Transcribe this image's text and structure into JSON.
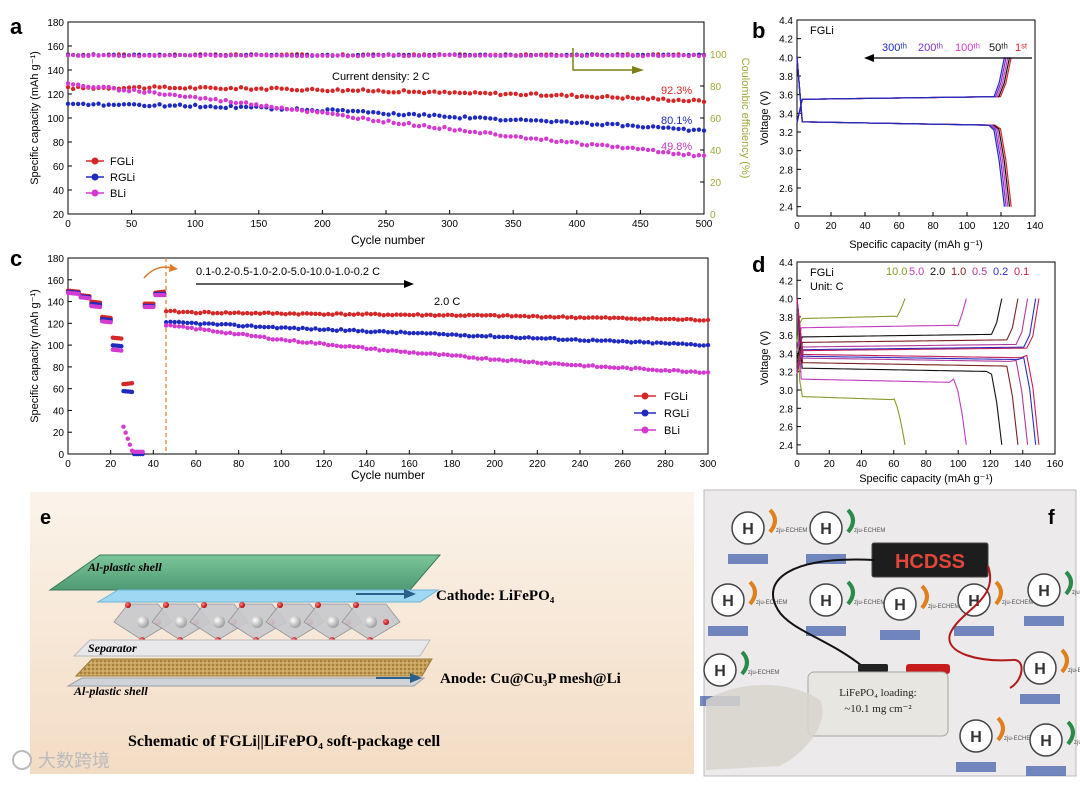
{
  "colors": {
    "fgli": "#d62728",
    "rgli": "#1f2bbf",
    "bli": "#d33bd0",
    "ce": "#6b8e23",
    "ce_axis": "#a0a83c",
    "olive": "#7f7f1a",
    "black": "#111111",
    "orange": "#e07a2c",
    "gray": "#555555"
  },
  "panel_a": {
    "label": "a",
    "xlabel": "Cycle number",
    "ylabel": "Specific capacity (mAh g⁻¹)",
    "y2label": "Coulombic efficiency (%)",
    "annotation": "Current density: 2 C",
    "pct_labels": [
      {
        "text": "92.3%",
        "series": "FGLi"
      },
      {
        "text": "80.1%",
        "series": "RGLi"
      },
      {
        "text": "49.8%",
        "series": "BLi"
      }
    ]
  },
  "panel_b": {
    "label": "b",
    "title": "FGLi",
    "xlabel": "Specific capacity (mAh g⁻¹)",
    "ylabel": "Voltage (V)",
    "cycle_labels": [
      "300ᵗʰ",
      "200ᵗʰ",
      "100ᵗʰ",
      "50ᵗʰ",
      "1ˢᵗ"
    ]
  },
  "panel_c": {
    "label": "c",
    "xlabel": "Cycle number",
    "ylabel": "Specific capacity (mAh g⁻¹)",
    "rate_sequence": "0.1-0.2-0.5-1.0-2.0-5.0-10.0-1.0-0.2 C",
    "rate_label": "2.0 C"
  },
  "panel_d": {
    "label": "d",
    "title": "FGLi",
    "unit": "Unit: C",
    "xlabel": "Specific capacity (mAh g⁻¹)",
    "ylabel": "Voltage (V)",
    "rates": [
      "10.0",
      "5.0",
      "2.0",
      "1.0",
      "0.5",
      "0.2",
      "0.1"
    ]
  },
  "panel_e": {
    "label": "e",
    "top_shell": "Al-plastic shell",
    "separator": "Separator",
    "bottom_shell": "Al-plastic shell",
    "cathode": "Cathode: LiFePO₄",
    "anode": "Anode: Cu@Cu₃P mesh@Li",
    "caption": "Schematic of FGLi||LiFePO₄ soft-package cell"
  },
  "panel_f": {
    "label": "f",
    "cell_label_1": "LiFePO₄ loading:",
    "cell_label_2": "~10.1 mg cm⁻²",
    "led_text": "HCDSS",
    "logo_text": "zju-ECHEM"
  },
  "watermark": "大数跨境",
  "chart_data": [
    {
      "panel": "a",
      "type": "line",
      "xlim": [
        0,
        500
      ],
      "ylim": [
        20,
        180
      ],
      "y2lim": [
        0,
        120
      ],
      "xticks": [
        0,
        50,
        100,
        150,
        200,
        250,
        300,
        350,
        400,
        450,
        500
      ],
      "yticks": [
        20,
        40,
        60,
        80,
        100,
        120,
        140,
        160,
        180
      ],
      "y2ticks": [
        0,
        20,
        40,
        60,
        80,
        100
      ],
      "series": [
        {
          "name": "FGLi",
          "x": [
            0,
            50,
            100,
            150,
            200,
            250,
            300,
            350,
            400,
            450,
            500
          ],
          "y": [
            125,
            125.5,
            125,
            124.5,
            123.5,
            122.5,
            121,
            120,
            118.5,
            116.5,
            114
          ],
          "y2": [
            99.5,
            99.5,
            99.5,
            99.5,
            99.5,
            99.5,
            99.5,
            99.5,
            99.5,
            99.5,
            99.5
          ]
        },
        {
          "name": "RGLi",
          "x": [
            0,
            50,
            100,
            150,
            200,
            250,
            300,
            350,
            400,
            450,
            500
          ],
          "y": [
            111,
            111,
            110,
            108.5,
            106.5,
            104,
            101,
            98.5,
            96,
            93,
            89.5
          ],
          "y2": [
            99.3,
            99.3,
            99.3,
            99.3,
            99.3,
            99.3,
            99.3,
            99.3,
            99.3,
            99.3,
            99.3
          ]
        },
        {
          "name": "BLi",
          "x": [
            0,
            20,
            50,
            100,
            150,
            200,
            250,
            300,
            350,
            400,
            450,
            500
          ],
          "y": [
            128,
            126,
            123,
            117,
            111,
            104,
            97,
            91,
            85,
            79,
            74,
            68
          ],
          "y2": [
            99,
            99,
            99,
            99,
            99,
            99,
            99,
            99,
            99,
            99,
            99,
            99
          ]
        }
      ]
    },
    {
      "panel": "b",
      "type": "line",
      "xlim": [
        0,
        140
      ],
      "ylim": [
        2.3,
        4.4
      ],
      "xticks": [
        0,
        20,
        40,
        60,
        80,
        100,
        120,
        140
      ],
      "yticks": [
        2.4,
        2.6,
        2.8,
        3.0,
        3.2,
        3.4,
        3.6,
        3.8,
        4.0,
        4.2,
        4.4
      ],
      "series": [
        {
          "name": "1st",
          "color": "#d62728",
          "capacity": 126
        },
        {
          "name": "50th",
          "color": "#111111",
          "capacity": 125
        },
        {
          "name": "100th",
          "color": "#d33bd0",
          "capacity": 124
        },
        {
          "name": "200th",
          "color": "#7b2fbe",
          "capacity": 123
        },
        {
          "name": "300th",
          "color": "#1f2bbf",
          "capacity": 122
        }
      ]
    },
    {
      "panel": "c",
      "type": "line",
      "xlim": [
        0,
        300
      ],
      "ylim": [
        0,
        180
      ],
      "xticks": [
        0,
        20,
        40,
        60,
        80,
        100,
        120,
        140,
        160,
        180,
        200,
        220,
        240,
        260,
        280,
        300
      ],
      "yticks": [
        0,
        20,
        40,
        60,
        80,
        100,
        120,
        140,
        160,
        180
      ],
      "series": [
        {
          "name": "FGLi",
          "x": [
            0,
            5,
            5.1,
            10,
            10.1,
            15,
            15.1,
            20,
            20.1,
            25,
            25.1,
            30,
            30.1,
            35,
            35.1,
            40,
            40.1,
            45,
            46,
            60,
            100,
            150,
            200,
            250,
            300
          ],
          "y": [
            150,
            149,
            146,
            145,
            140,
            139,
            126,
            125,
            107,
            106,
            64,
            65,
            0,
            0,
            138,
            138,
            148,
            149,
            131,
            130,
            129,
            128,
            127,
            125,
            123
          ]
        },
        {
          "name": "RGLi",
          "x": [
            0,
            5,
            5.1,
            10,
            10.1,
            15,
            15.1,
            20,
            20.1,
            25,
            25.1,
            30,
            30.1,
            35,
            35.1,
            40,
            40.1,
            45,
            46,
            60,
            100,
            150,
            200,
            250,
            300
          ],
          "y": [
            149,
            148,
            145,
            144,
            138,
            137,
            124,
            123,
            100,
            99,
            58,
            57,
            0,
            0,
            136,
            136,
            147,
            147,
            121,
            120,
            116,
            112,
            108,
            104,
            100
          ]
        },
        {
          "name": "BLi",
          "x": [
            0,
            5,
            5.1,
            10,
            10.1,
            15,
            15.1,
            20,
            20.1,
            25,
            25.1,
            30,
            30.1,
            35,
            35.1,
            40,
            40.1,
            45,
            46,
            60,
            100,
            150,
            200,
            250,
            300
          ],
          "y": [
            148,
            147,
            144,
            143,
            136,
            135,
            122,
            121,
            96,
            95,
            30,
            3,
            2,
            2,
            135,
            135,
            146,
            146,
            118,
            115,
            105,
            95,
            87,
            80,
            75
          ]
        }
      ]
    },
    {
      "panel": "d",
      "type": "line",
      "xlim": [
        0,
        160
      ],
      "ylim": [
        2.3,
        4.4
      ],
      "xticks": [
        0,
        20,
        40,
        60,
        80,
        100,
        120,
        140,
        160
      ],
      "yticks": [
        2.4,
        2.6,
        2.8,
        3.0,
        3.2,
        3.4,
        3.6,
        3.8,
        4.0,
        4.2,
        4.4
      ],
      "series": [
        {
          "name": "10.0",
          "color": "#8a9a2a",
          "capacity": 67,
          "charge_plateau": 3.78,
          "discharge_plateau": 2.93
        },
        {
          "name": "5.0",
          "color": "#c23bbf",
          "capacity": 105,
          "charge_plateau": 3.68,
          "discharge_plateau": 3.12
        },
        {
          "name": "2.0",
          "color": "#111111",
          "capacity": 127,
          "charge_plateau": 3.58,
          "discharge_plateau": 3.24
        },
        {
          "name": "1.0",
          "color": "#7a2121",
          "capacity": 137,
          "charge_plateau": 3.52,
          "discharge_plateau": 3.3
        },
        {
          "name": "0.5",
          "color": "#b0399a",
          "capacity": 143,
          "charge_plateau": 3.47,
          "discharge_plateau": 3.35
        },
        {
          "name": "0.2",
          "color": "#2a2fbf",
          "capacity": 148,
          "charge_plateau": 3.44,
          "discharge_plateau": 3.37
        },
        {
          "name": "0.1",
          "color": "#c21f5a",
          "capacity": 150,
          "charge_plateau": 3.43,
          "discharge_plateau": 3.39
        }
      ]
    }
  ]
}
